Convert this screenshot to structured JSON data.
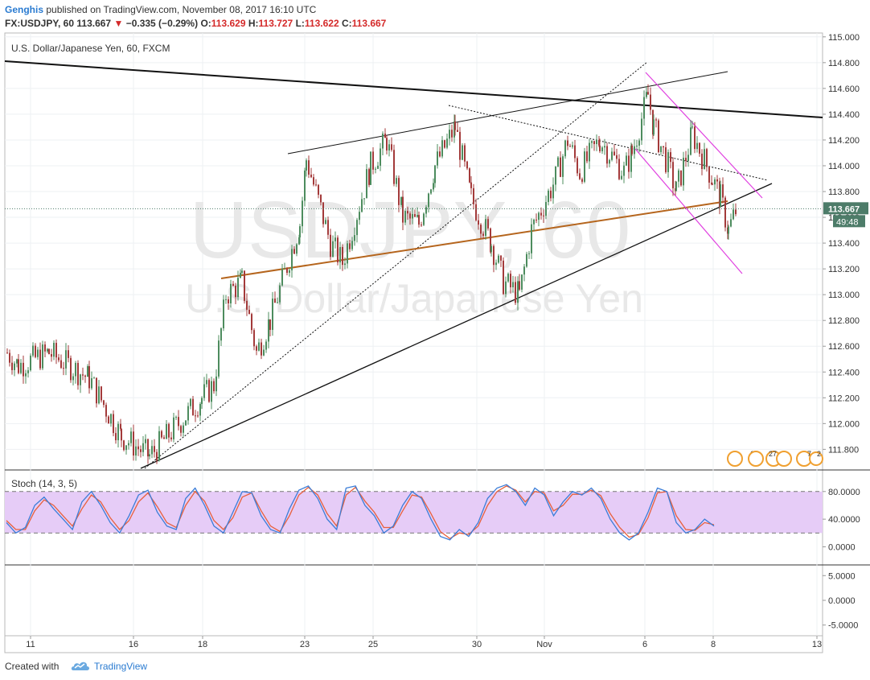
{
  "header": {
    "author": "Genghis",
    "published_text": "published on TradingView.com, November 08, 2017 16:10 UTC",
    "symbol": "FX:USDJPY, 60",
    "price": "113.667",
    "change_arrow": "▼",
    "change": "−0.335 (−0.29%)",
    "o_label": "O:",
    "o_value": "113.629",
    "h_label": "H:",
    "h_value": "113.727",
    "l_label": "L:",
    "l_value": "113.622",
    "c_label": "C:",
    "c_value": "113.667"
  },
  "legend": {
    "instrument": "U.S. Dollar/Japanese Yen, 60, FXCM",
    "stoch": "Stoch (14, 3, 5)"
  },
  "watermark": {
    "symbol": "USDJPY, 60",
    "name": "U.S. Dollar/Japanese Yen"
  },
  "last_price_label": "113.667",
  "countdown_label": "49:48",
  "event_labels": [
    "6",
    "27",
    "7",
    "2"
  ],
  "footer": {
    "created_with": "Created with",
    "brand": "TradingView"
  },
  "colors": {
    "bull": "#4d8c5e",
    "bear": "#a33a3a",
    "trendline_brown": "#b5651d",
    "channel_magenta": "#e040e0",
    "stoch_k": "#3b7dd8",
    "stoch_d": "#e8603c",
    "stoch_band": "#e6ccf7",
    "price_label_bg": "#4d7c69",
    "link_blue": "#2a7bd1"
  },
  "chart_data": [
    {
      "type": "candlestick",
      "title": "U.S. Dollar/Japanese Yen, 60, FXCM",
      "y_axis_ticks": [
        "115.000",
        "114.800",
        "114.600",
        "114.400",
        "114.200",
        "114.000",
        "113.800",
        "113.600",
        "113.400",
        "113.200",
        "113.000",
        "112.800",
        "112.600",
        "112.400",
        "112.200",
        "112.000",
        "111.800"
      ],
      "ylim": [
        111.64,
        115.03
      ],
      "x_tick_labels": [
        "11",
        "16",
        "18",
        "23",
        "25",
        "30",
        "Nov",
        "6",
        "8",
        "13"
      ],
      "last_price": 113.667,
      "approx_path": [
        {
          "x": "Oct 10 18:00",
          "y": 112.55
        },
        {
          "x": "Oct 11 00:00",
          "y": 112.45
        },
        {
          "x": "Oct 12 04:00",
          "y": 112.55
        },
        {
          "x": "Oct 13 12:00",
          "y": 112.35
        },
        {
          "x": "Oct 16 08:00",
          "y": 111.9
        },
        {
          "x": "Oct 17 00:00",
          "y": 111.75
        },
        {
          "x": "Oct 18 00:00",
          "y": 112.2
        },
        {
          "x": "Oct 18 20:00",
          "y": 112.3
        },
        {
          "x": "Oct 19 08:00",
          "y": 113.0
        },
        {
          "x": "Oct 19 20:00",
          "y": 113.1
        },
        {
          "x": "Oct 20 12:00",
          "y": 112.55
        },
        {
          "x": "Oct 20 22:00",
          "y": 112.8
        },
        {
          "x": "Oct 22 22:00",
          "y": 113.55
        },
        {
          "x": "Oct 23 04:00",
          "y": 114.05
        },
        {
          "x": "Oct 24 04:00",
          "y": 113.4
        },
        {
          "x": "Oct 24 16:00",
          "y": 113.25
        },
        {
          "x": "Oct 25 04:00",
          "y": 114.0
        },
        {
          "x": "Oct 25 16:00",
          "y": 114.2
        },
        {
          "x": "Oct 26 04:00",
          "y": 113.6
        },
        {
          "x": "Oct 27 00:00",
          "y": 113.55
        },
        {
          "x": "Oct 27 12:00",
          "y": 114.0
        },
        {
          "x": "Oct 27 22:00",
          "y": 114.3
        },
        {
          "x": "Oct 30 00:00",
          "y": 113.75
        },
        {
          "x": "Oct 30 16:00",
          "y": 113.4
        },
        {
          "x": "Oct 31 00:00",
          "y": 113.1
        },
        {
          "x": "Oct 31 12:00",
          "y": 113.0
        },
        {
          "x": "Oct 31 20:00",
          "y": 113.5
        },
        {
          "x": "Nov 1 12:00",
          "y": 113.9
        },
        {
          "x": "Nov 1 20:00",
          "y": 114.2
        },
        {
          "x": "Nov 2 08:00",
          "y": 113.95
        },
        {
          "x": "Nov 3 00:00",
          "y": 114.2
        },
        {
          "x": "Nov 3 16:00",
          "y": 113.95
        },
        {
          "x": "Nov 5 22:00",
          "y": 114.1
        },
        {
          "x": "Nov 6 04:00",
          "y": 114.55
        },
        {
          "x": "Nov 6 16:00",
          "y": 114.3
        },
        {
          "x": "Nov 7 00:00",
          "y": 114.0
        },
        {
          "x": "Nov 7 08:00",
          "y": 113.8
        },
        {
          "x": "Nov 7 16:00",
          "y": 114.25
        },
        {
          "x": "Nov 8 00:00",
          "y": 113.9
        },
        {
          "x": "Nov 8 06:00",
          "y": 113.75
        },
        {
          "x": "Nov 8 12:00",
          "y": 113.5
        },
        {
          "x": "Nov 8 16:00",
          "y": 113.667
        }
      ]
    },
    {
      "type": "line",
      "title": "Stoch (14, 3, 5)",
      "y_axis_ticks": [
        "80.0000",
        "40.0000",
        "0.0000"
      ],
      "ylim": [
        -25,
        110
      ],
      "band": [
        20,
        80
      ],
      "series": [
        {
          "name": "%K",
          "values": [
            35,
            20,
            28,
            60,
            72,
            55,
            40,
            25,
            65,
            80,
            60,
            35,
            20,
            45,
            75,
            82,
            50,
            30,
            25,
            70,
            85,
            60,
            30,
            20,
            50,
            80,
            78,
            45,
            25,
            20,
            55,
            82,
            88,
            70,
            40,
            25,
            85,
            88,
            60,
            45,
            20,
            30,
            60,
            80,
            70,
            40,
            15,
            10,
            25,
            15,
            35,
            70,
            85,
            90,
            80,
            60,
            85,
            75,
            45,
            65,
            80,
            75,
            85,
            70,
            40,
            20,
            10,
            20,
            50,
            85,
            80,
            35,
            20,
            25,
            40,
            30
          ]
        },
        {
          "name": "%D",
          "values": [
            38,
            25,
            25,
            52,
            68,
            60,
            45,
            30,
            55,
            75,
            65,
            42,
            25,
            38,
            65,
            78,
            58,
            35,
            28,
            60,
            80,
            66,
            38,
            25,
            42,
            72,
            78,
            52,
            30,
            22,
            45,
            75,
            86,
            75,
            48,
            30,
            75,
            86,
            66,
            50,
            28,
            28,
            52,
            75,
            72,
            48,
            22,
            12,
            20,
            18,
            30,
            60,
            80,
            88,
            82,
            65,
            80,
            78,
            52,
            60,
            76,
            76,
            82,
            74,
            48,
            28,
            14,
            18,
            42,
            78,
            80,
            45,
            25,
            24,
            35,
            32
          ]
        }
      ]
    },
    {
      "type": "line",
      "y_axis_ticks": [
        "5.0000",
        "0.0000",
        "-5.0000"
      ],
      "ylim": [
        -7,
        7
      ]
    }
  ]
}
